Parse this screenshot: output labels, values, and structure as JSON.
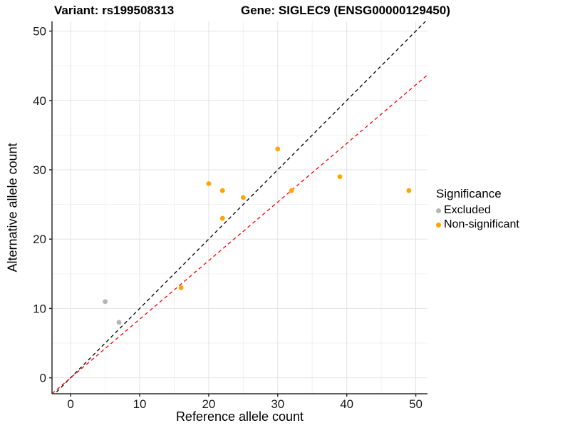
{
  "chart_data": {
    "type": "scatter",
    "title_left": "Variant: rs199508313",
    "title_right": "Gene: SIGLEC9 (ENSG00000129450)",
    "xlabel": "Reference allele count",
    "ylabel": "Alternative allele count",
    "xlim": [
      -2.7,
      51.7
    ],
    "ylim": [
      -2.3,
      51.4
    ],
    "x_ticks": [
      0,
      10,
      20,
      30,
      40,
      50
    ],
    "y_ticks": [
      0,
      10,
      20,
      30,
      40,
      50
    ],
    "x_minor_ticks": [
      5,
      15,
      25,
      35,
      45
    ],
    "y_minor_ticks": [
      5,
      15,
      25,
      35,
      45
    ],
    "grid": true,
    "legend_position": "right",
    "series": [
      {
        "name": "Excluded",
        "color": "#B5B5B5",
        "points": [
          [
            5,
            11
          ],
          [
            7,
            8
          ]
        ]
      },
      {
        "name": "Non-significant",
        "color": "#FFA500",
        "points": [
          [
            16,
            13
          ],
          [
            20,
            28
          ],
          [
            22,
            23
          ],
          [
            22,
            27
          ],
          [
            25,
            26
          ],
          [
            30,
            33
          ],
          [
            32,
            27
          ],
          [
            39,
            29
          ],
          [
            49,
            27
          ]
        ]
      }
    ],
    "lines": [
      {
        "name": "identity-line",
        "color": "#000000",
        "slope": 1,
        "intercept": 0,
        "dash": "5 4"
      },
      {
        "name": "expected-ratio-line",
        "color": "#FF0000",
        "slope": 0.845,
        "intercept": 0,
        "dash": "5 4"
      }
    ]
  },
  "legend": {
    "title": "Significance"
  },
  "style": {
    "grid_major_color": "#e3e3e3",
    "grid_minor_color": "#f1f1f1",
    "axis_line_color": "#2b2b2b",
    "tick_label_color": "#1a1a1a"
  }
}
